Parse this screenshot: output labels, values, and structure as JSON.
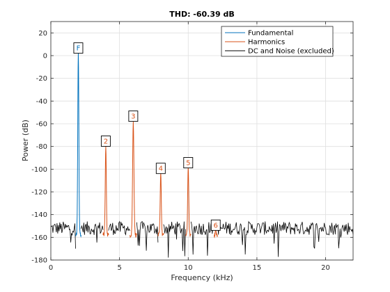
{
  "chart_data": {
    "type": "line",
    "title": "THD: -60.39 dB",
    "xlabel": "Frequency (kHz)",
    "ylabel": "Power (dB)",
    "xlim": [
      0,
      22
    ],
    "ylim": [
      -180,
      30
    ],
    "xticks": [
      0,
      5,
      10,
      15,
      20
    ],
    "yticks": [
      -180,
      -160,
      -140,
      -120,
      -100,
      -80,
      -60,
      -40,
      -20,
      0,
      20
    ],
    "grid": true,
    "legend_position": "top-right",
    "series": [
      {
        "name": "Fundamental",
        "color": "#0072BD",
        "peaks": [
          {
            "x": 2.0,
            "y": 3.5,
            "width": 0.2
          }
        ]
      },
      {
        "name": "Harmonics",
        "color": "#D95319",
        "peaks": [
          {
            "x": 4.0,
            "y": -80,
            "width": 0.2
          },
          {
            "x": 6.0,
            "y": -58,
            "width": 0.24
          },
          {
            "x": 8.0,
            "y": -103,
            "width": 0.2
          },
          {
            "x": 10.0,
            "y": -98,
            "width": 0.2
          },
          {
            "x": 12.0,
            "y": -152,
            "width": 0.12
          }
        ]
      },
      {
        "name": "DC and Noise (excluded)",
        "color": "#000000",
        "noise_floor": -152,
        "noise_range": [
          -160,
          -145
        ]
      }
    ],
    "annotations": [
      {
        "text": "F",
        "x": 2.0,
        "y": 7,
        "color": "#0072BD"
      },
      {
        "text": "2",
        "x": 4.0,
        "y": -75,
        "color": "#D95319"
      },
      {
        "text": "3",
        "x": 6.0,
        "y": -53,
        "color": "#D95319"
      },
      {
        "text": "4",
        "x": 8.0,
        "y": -99,
        "color": "#D95319"
      },
      {
        "text": "5",
        "x": 10.0,
        "y": -94,
        "color": "#D95319"
      },
      {
        "text": "6",
        "x": 12.0,
        "y": -149,
        "color": "#D95319"
      }
    ]
  }
}
